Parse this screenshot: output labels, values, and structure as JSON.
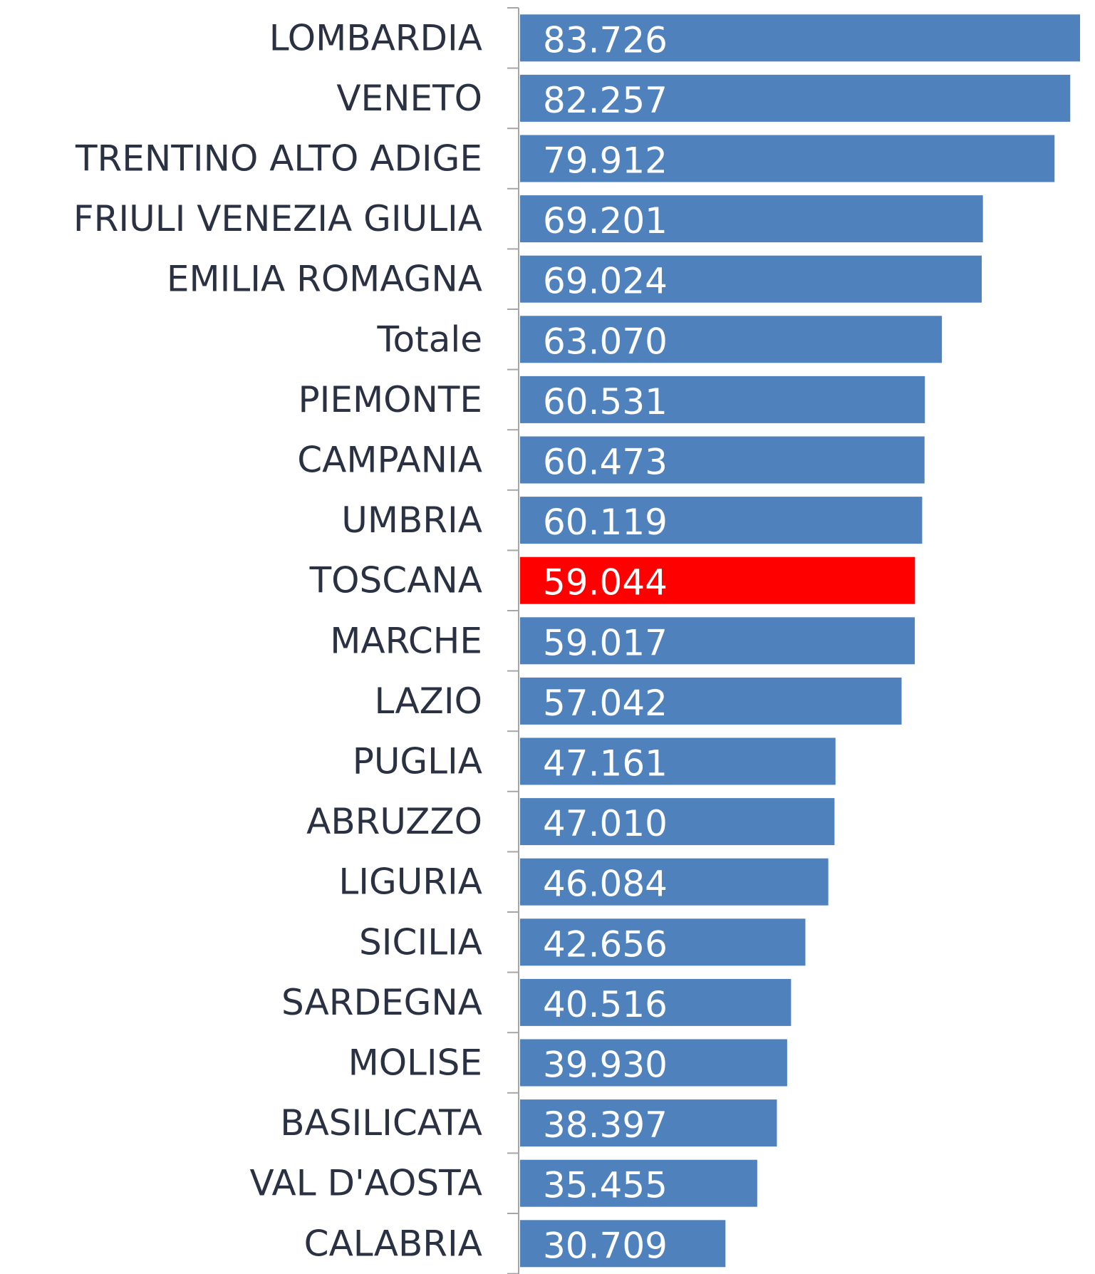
{
  "chart_data": {
    "type": "bar",
    "orientation": "horizontal",
    "categories": [
      "LOMBARDIA",
      "VENETO",
      "TRENTINO ALTO ADIGE",
      "FRIULI VENEZIA GIULIA",
      "EMILIA ROMAGNA",
      "Totale",
      "PIEMONTE",
      "CAMPANIA",
      "UMBRIA",
      "TOSCANA",
      "MARCHE",
      "LAZIO",
      "PUGLIA",
      "ABRUZZO",
      "LIGURIA",
      "SICILIA",
      "SARDEGNA",
      "MOLISE",
      "BASILICATA",
      "VAL D'AOSTA",
      "CALABRIA"
    ],
    "values": [
      83.726,
      82.257,
      79.912,
      69.201,
      69.024,
      63.07,
      60.531,
      60.473,
      60.119,
      59.044,
      59.017,
      57.042,
      47.161,
      47.01,
      46.084,
      42.656,
      40.516,
      39.93,
      38.397,
      35.455,
      30.709
    ],
    "value_labels": [
      "83.726",
      "82.257",
      "79.912",
      "69.201",
      "69.024",
      "63.070",
      "60.531",
      "60.473",
      "60.119",
      "59.044",
      "59.017",
      "57.042",
      "47.161",
      "47.010",
      "46.084",
      "42.656",
      "40.516",
      "39.930",
      "38.397",
      "35.455",
      "30.709"
    ],
    "colors": [
      "#4f81bd",
      "#4f81bd",
      "#4f81bd",
      "#4f81bd",
      "#4f81bd",
      "#4f81bd",
      "#4f81bd",
      "#4f81bd",
      "#4f81bd",
      "#ff0000",
      "#4f81bd",
      "#4f81bd",
      "#4f81bd",
      "#4f81bd",
      "#4f81bd",
      "#4f81bd",
      "#4f81bd",
      "#4f81bd",
      "#4f81bd",
      "#4f81bd",
      "#4f81bd"
    ],
    "xlim": [
      0,
      85
    ]
  }
}
